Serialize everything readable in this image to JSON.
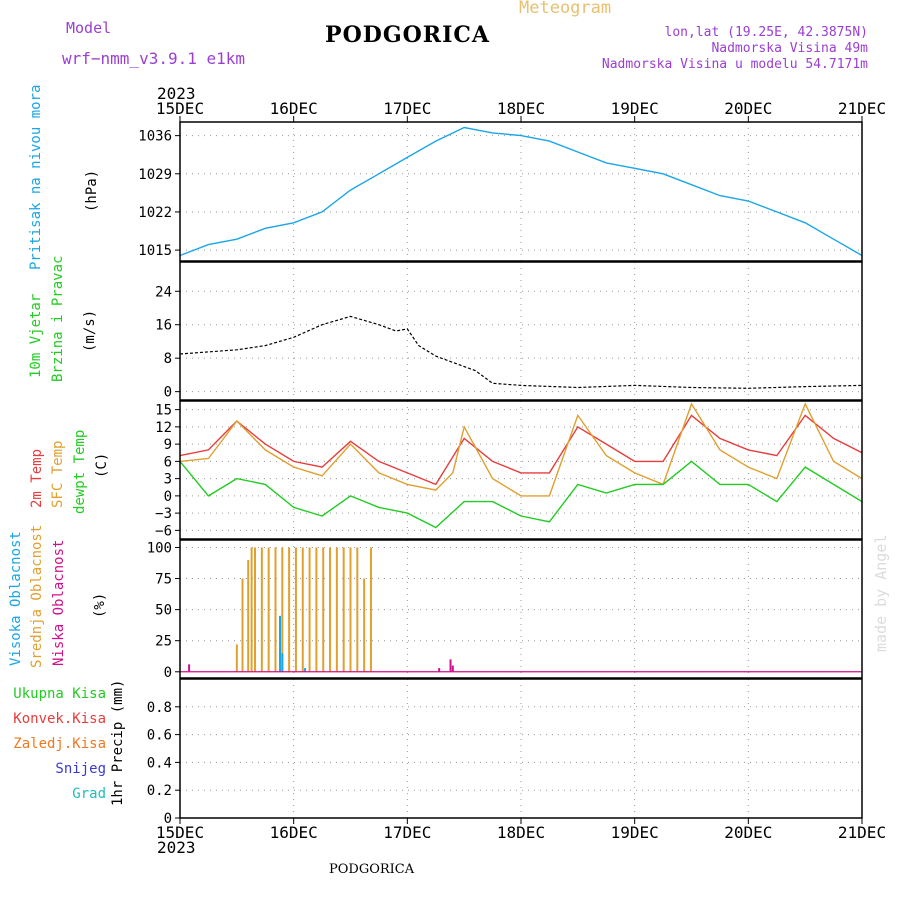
{
  "header": {
    "model_label": "Model",
    "model_name": "wrf−nmm_v3.9.1 e1km",
    "title": "PODGORICA",
    "meteogram": "Meteogram",
    "lonlat": "lon,lat (19.25E, 42.3875N)",
    "elevation": "Nadmorska Visina 49m",
    "model_elevation": "Nadmorska Visina u modelu 54.7171m",
    "year_top": "2023",
    "year_bottom": "2023",
    "footer_title": "PODGORICA",
    "credit": "made by Angel"
  },
  "colors": {
    "pressure": "#1aa6e6",
    "temp2m": "#e83c3c",
    "sfc": "#e0a030",
    "dewpoint": "#22cc22",
    "purple": "#9a3fd2",
    "grid": "#9a9a9a",
    "high_cloud": "#1aa6e6",
    "mid_cloud": "#e0a030",
    "low_cloud": "#d0108c",
    "ukupna": "#22cc22",
    "konvek": "#e83c3c",
    "zaledj": "#f07820",
    "snijeg": "#3a3acc",
    "grad": "#22bbbb"
  },
  "chart_data": {
    "x_ticks": [
      "15DEC",
      "16DEC",
      "17DEC",
      "18DEC",
      "19DEC",
      "20DEC",
      "21DEC"
    ],
    "x_range_days": [
      0,
      6
    ],
    "panels": [
      {
        "id": "pressure",
        "type": "line",
        "ylabel": [
          "Pritisak na nivou mora",
          "(hPa)"
        ],
        "ylim": [
          1013,
          1038.5
        ],
        "yticks": [
          1015,
          1022,
          1029,
          1036
        ],
        "series": [
          {
            "name": "Pritisak na nivou mora",
            "x": [
              0,
              0.25,
              0.5,
              0.75,
              1.0,
              1.25,
              1.5,
              1.75,
              2.0,
              2.25,
              2.5,
              2.75,
              3.0,
              3.25,
              3.5,
              3.75,
              4.0,
              4.25,
              4.5,
              4.75,
              5.0,
              5.25,
              5.5,
              5.75,
              6.0
            ],
            "y": [
              1014,
              1016,
              1017,
              1019,
              1020,
              1022,
              1026,
              1029,
              1032,
              1035,
              1037.5,
              1036.5,
              1036,
              1035,
              1033,
              1031,
              1030,
              1029,
              1027,
              1025,
              1024,
              1022,
              1020,
              1017,
              1014
            ]
          }
        ]
      },
      {
        "id": "wind",
        "type": "line",
        "ylabel": [
          "10m Vjetar",
          "Brzina i Pravac",
          "(m/s)"
        ],
        "ylim": [
          -2,
          31
        ],
        "yticks": [
          0,
          8,
          16,
          24
        ],
        "series": [
          {
            "name": "10m Vjetar Brzina",
            "x": [
              0,
              0.25,
              0.5,
              0.75,
              1.0,
              1.25,
              1.5,
              1.75,
              1.9,
              2.0,
              2.1,
              2.25,
              2.4,
              2.6,
              2.75,
              3.0,
              3.5,
              4.0,
              4.5,
              5.0,
              5.5,
              6.0
            ],
            "y": [
              9,
              9.5,
              10,
              11,
              13,
              16,
              18,
              16,
              14.5,
              15,
              11,
              8.5,
              7,
              5,
              2,
              1.5,
              1,
              1.5,
              1,
              0.8,
              1.2,
              1.5
            ]
          }
        ]
      },
      {
        "id": "temperature",
        "type": "line",
        "ylabel": [
          "2m Temp",
          "SFC Temp",
          "dewpt Temp",
          "(C)"
        ],
        "ylim": [
          -7.5,
          16.5
        ],
        "yticks": [
          -6,
          -3,
          0,
          3,
          6,
          9,
          12,
          15
        ],
        "series": [
          {
            "name": "2m Temp",
            "x": [
              0,
              0.25,
              0.5,
              0.75,
              1.0,
              1.25,
              1.5,
              1.75,
              2.0,
              2.25,
              2.5,
              2.75,
              3.0,
              3.25,
              3.5,
              3.75,
              4.0,
              4.25,
              4.5,
              4.75,
              5.0,
              5.25,
              5.5,
              5.75,
              6.0
            ],
            "y": [
              7,
              8,
              13,
              9,
              6,
              5,
              9.5,
              6,
              4,
              2,
              10,
              6,
              4,
              4,
              12,
              9,
              6,
              6,
              14,
              10,
              8,
              7,
              14,
              10,
              7.5
            ]
          },
          {
            "name": "SFC Temp",
            "x": [
              0,
              0.25,
              0.5,
              0.75,
              1.0,
              1.25,
              1.5,
              1.75,
              2.0,
              2.25,
              2.4,
              2.5,
              2.75,
              3.0,
              3.25,
              3.5,
              3.75,
              4.0,
              4.25,
              4.5,
              4.75,
              5.0,
              5.25,
              5.5,
              5.75,
              6.0
            ],
            "y": [
              6,
              6.5,
              13,
              8,
              5,
              3.5,
              9,
              4,
              2,
              1,
              4,
              12,
              3,
              0,
              0,
              14,
              7,
              4,
              2,
              16,
              8,
              5,
              3,
              16,
              6,
              3
            ]
          },
          {
            "name": "dewpt Temp",
            "x": [
              0,
              0.25,
              0.5,
              0.75,
              1.0,
              1.25,
              1.5,
              1.75,
              2.0,
              2.25,
              2.5,
              2.75,
              3.0,
              3.25,
              3.5,
              3.75,
              4.0,
              4.25,
              4.5,
              4.75,
              5.0,
              5.25,
              5.5,
              5.75,
              6.0
            ],
            "y": [
              6,
              0,
              3,
              2,
              -2,
              -3.5,
              0,
              -2,
              -3,
              -5.5,
              -1,
              -1,
              -3.5,
              -4.5,
              2,
              0.5,
              2,
              2,
              6,
              2,
              2,
              -1,
              5,
              2,
              -1
            ]
          }
        ]
      },
      {
        "id": "clouds",
        "type": "bar",
        "ylabel": [
          "Visoka Oblacnost",
          "Srednja Oblacnost",
          "Niska Oblacnost",
          "(%)"
        ],
        "ylim": [
          -5,
          106
        ],
        "yticks": [
          0,
          25,
          50,
          75,
          100
        ],
        "series": [
          {
            "name": "Srednja Oblacnost",
            "x": [
              0.5,
              0.55,
              0.6,
              0.63,
              0.66,
              0.72,
              0.78,
              0.84,
              0.9,
              0.96,
              1.02,
              1.08,
              1.14,
              1.2,
              1.26,
              1.32,
              1.38,
              1.44,
              1.5,
              1.56,
              1.62,
              1.68
            ],
            "values": [
              22,
              75,
              90,
              100,
              100,
              100,
              100,
              100,
              100,
              100,
              100,
              100,
              100,
              100,
              100,
              100,
              100,
              100,
              100,
              100,
              75,
              100
            ]
          },
          {
            "name": "Niska Oblacnost",
            "x": [
              0.08,
              2.28,
              2.38,
              2.4
            ],
            "values": [
              6,
              3,
              10,
              5
            ]
          },
          {
            "name": "Visoka Oblacnost",
            "x": [
              0.88,
              0.9,
              1.1
            ],
            "values": [
              45,
              15,
              3
            ]
          }
        ]
      },
      {
        "id": "precip",
        "type": "bar",
        "ylabel": [
          "1hr Precip (mm)"
        ],
        "ylim": [
          0,
          1.0
        ],
        "yticks": [
          0,
          0.2,
          0.4,
          0.6,
          0.8
        ],
        "legend": [
          "Ukupna Kisa",
          "Konvek.Kisa",
          "Zaledj.Kisa",
          "Snijeg",
          "Grad"
        ],
        "series": []
      }
    ]
  }
}
